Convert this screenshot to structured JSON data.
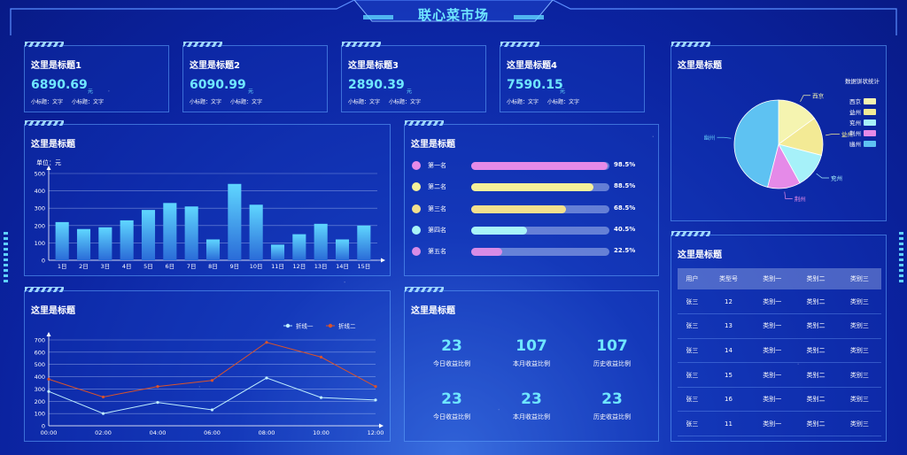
{
  "app": {
    "title": "联心菜市场"
  },
  "cards": [
    {
      "title": "这里是标题1",
      "value": "6890.69",
      "unit": "元",
      "sub1": "小标题：文字",
      "sub2": "小标题：文字"
    },
    {
      "title": "这里是标题2",
      "value": "6090.99",
      "unit": "元",
      "sub1": "小标题：文字",
      "sub2": "小标题：文字"
    },
    {
      "title": "这里是标题3",
      "value": "2890.39",
      "unit": "元",
      "sub1": "小标题：文字",
      "sub2": "小标题：文字"
    },
    {
      "title": "这里是标题4",
      "value": "7590.15",
      "unit": "元",
      "sub1": "小标题：文字",
      "sub2": "小标题：文字"
    }
  ],
  "bar_panel": {
    "title": "这里是标题",
    "unit_label": "单位：元"
  },
  "rank_panel": {
    "title": "这里是标题"
  },
  "pie_panel": {
    "title": "这里是标题"
  },
  "line_panel": {
    "title": "这里是标题"
  },
  "stats_panel": {
    "title": "这里是标题"
  },
  "table_panel": {
    "title": "这里是标题"
  },
  "ranks": [
    {
      "label": "第一名",
      "percent": 98.5,
      "text": "98.5%",
      "color": "#e58ae8"
    },
    {
      "label": "第二名",
      "percent": 88.5,
      "text": "88.5%",
      "color": "#f5f09a"
    },
    {
      "label": "第三名",
      "percent": 68.5,
      "text": "68.5%",
      "color": "#f3e08d"
    },
    {
      "label": "第四名",
      "percent": 40.5,
      "text": "40.5%",
      "color": "#a8f4f8"
    },
    {
      "label": "第五名",
      "percent": 22.5,
      "text": "22.5%",
      "color": "#d88be6"
    }
  ],
  "stats": [
    {
      "value": "23",
      "label": "今日收益比例"
    },
    {
      "value": "107",
      "label": "本月收益比例"
    },
    {
      "value": "107",
      "label": "历史收益比例"
    },
    {
      "value": "23",
      "label": "今日收益比例"
    },
    {
      "value": "23",
      "label": "本月收益比例"
    },
    {
      "value": "23",
      "label": "历史收益比例"
    }
  ],
  "table": {
    "headers": [
      "用户",
      "类型号",
      "类别一",
      "类别二",
      "类别三"
    ],
    "rows": [
      [
        "张三",
        "12",
        "类别一",
        "类别二",
        "类别三"
      ],
      [
        "张三",
        "13",
        "类别一",
        "类别二",
        "类别三"
      ],
      [
        "张三",
        "14",
        "类别一",
        "类别二",
        "类别三"
      ],
      [
        "张三",
        "15",
        "类别一",
        "类别二",
        "类别三"
      ],
      [
        "张三",
        "16",
        "类别一",
        "类别二",
        "类别三"
      ],
      [
        "张三",
        "11",
        "类别一",
        "类别二",
        "类别三"
      ]
    ]
  },
  "chart_data": [
    {
      "type": "bar",
      "categories": [
        "1日",
        "2日",
        "3日",
        "4日",
        "5日",
        "6日",
        "7日",
        "8日",
        "9日",
        "10日",
        "11日",
        "12日",
        "13日",
        "14日",
        "15日"
      ],
      "values": [
        220,
        180,
        190,
        230,
        290,
        330,
        310,
        120,
        440,
        320,
        90,
        150,
        210,
        120,
        200
      ],
      "ylim": [
        0,
        500
      ],
      "yticks": [
        0,
        100,
        200,
        300,
        400,
        500
      ],
      "ylabel": "单位：元",
      "grid": true,
      "colors": {
        "top": "#5fd6ff",
        "bottom": "#2a6bd8"
      }
    },
    {
      "type": "line",
      "x": [
        "00:00",
        "02:00",
        "04:00",
        "06:00",
        "08:00",
        "10:00",
        "12:00"
      ],
      "series": [
        {
          "name": "折线一",
          "values": [
            280,
            100,
            190,
            130,
            390,
            230,
            210
          ],
          "color": "#bfefff"
        },
        {
          "name": "折线二",
          "values": [
            380,
            235,
            320,
            370,
            680,
            560,
            320
          ],
          "color": "#d9532b"
        }
      ],
      "ylim": [
        0,
        700
      ],
      "yticks": [
        0,
        100,
        200,
        300,
        400,
        500,
        600,
        700
      ],
      "legend": "top-right",
      "grid": true
    },
    {
      "type": "pie",
      "title": "数据饼状统计",
      "slices": [
        {
          "name": "西京",
          "value": 15,
          "color": "#f5f4b0"
        },
        {
          "name": "益州",
          "value": 14,
          "color": "#f3ea95"
        },
        {
          "name": "兖州",
          "value": 13,
          "color": "#a6f1f9"
        },
        {
          "name": "荆州",
          "value": 12,
          "color": "#e58ae8"
        },
        {
          "name": "幽州",
          "value": 46,
          "color": "#5ec2f2"
        }
      ],
      "legend": "right"
    }
  ]
}
